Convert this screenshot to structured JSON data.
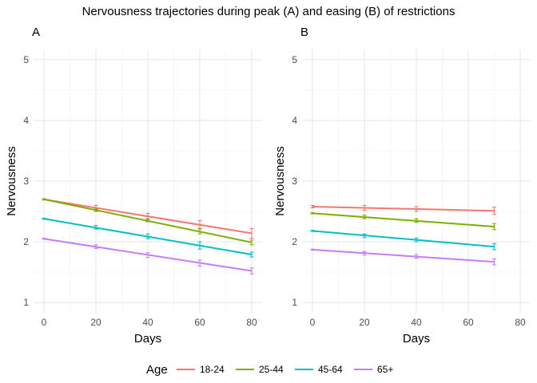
{
  "figure": {
    "title": "Nervousness trajectories during peak (A) and easing (B) of restrictions"
  },
  "legend": {
    "title": "Age",
    "position": "bottom"
  },
  "chart_data": [
    {
      "panel_label": "A",
      "type": "line",
      "xlabel": "Days",
      "ylabel": "Nervousness",
      "xlim": [
        -4,
        84
      ],
      "ylim": [
        0.83,
        5.17
      ],
      "xticks": [
        0,
        20,
        40,
        60,
        80
      ],
      "yticks": [
        1,
        2,
        3,
        4,
        5
      ],
      "grid": true,
      "error_bar_x": [
        0,
        20,
        40,
        60,
        80
      ],
      "series": [
        {
          "name": "18-24",
          "color": "#F8766D",
          "x": [
            0,
            80
          ],
          "y": [
            2.7,
            2.14
          ],
          "errors": [
            {
              "x": 0,
              "y": 2.7,
              "lo": 2.69,
              "hi": 2.71
            },
            {
              "x": 20,
              "y": 2.56,
              "lo": 2.53,
              "hi": 2.6
            },
            {
              "x": 40,
              "y": 2.42,
              "lo": 2.38,
              "hi": 2.47
            },
            {
              "x": 60,
              "y": 2.28,
              "lo": 2.22,
              "hi": 2.35
            },
            {
              "x": 80,
              "y": 2.14,
              "lo": 2.06,
              "hi": 2.22
            }
          ]
        },
        {
          "name": "25-44",
          "color": "#7CAE00",
          "x": [
            0,
            80
          ],
          "y": [
            2.7,
            1.99
          ],
          "errors": [
            {
              "x": 0,
              "y": 2.7,
              "lo": 2.69,
              "hi": 2.71
            },
            {
              "x": 20,
              "y": 2.52,
              "lo": 2.5,
              "hi": 2.54
            },
            {
              "x": 40,
              "y": 2.35,
              "lo": 2.33,
              "hi": 2.37
            },
            {
              "x": 60,
              "y": 2.17,
              "lo": 2.13,
              "hi": 2.21
            },
            {
              "x": 80,
              "y": 1.99,
              "lo": 1.95,
              "hi": 2.03
            }
          ]
        },
        {
          "name": "45-64",
          "color": "#00BFC4",
          "x": [
            0,
            80
          ],
          "y": [
            2.38,
            1.79
          ],
          "errors": [
            {
              "x": 0,
              "y": 2.38,
              "lo": 2.37,
              "hi": 2.39
            },
            {
              "x": 20,
              "y": 2.24,
              "lo": 2.21,
              "hi": 2.27
            },
            {
              "x": 40,
              "y": 2.09,
              "lo": 2.05,
              "hi": 2.13
            },
            {
              "x": 60,
              "y": 1.94,
              "lo": 1.88,
              "hi": 2.0
            },
            {
              "x": 80,
              "y": 1.79,
              "lo": 1.75,
              "hi": 1.83
            }
          ]
        },
        {
          "name": "65+",
          "color": "#C77CFF",
          "x": [
            0,
            80
          ],
          "y": [
            2.05,
            1.52
          ],
          "errors": [
            {
              "x": 0,
              "y": 2.05,
              "lo": 2.04,
              "hi": 2.06
            },
            {
              "x": 20,
              "y": 1.92,
              "lo": 1.89,
              "hi": 1.95
            },
            {
              "x": 40,
              "y": 1.78,
              "lo": 1.74,
              "hi": 1.82
            },
            {
              "x": 60,
              "y": 1.65,
              "lo": 1.6,
              "hi": 1.7
            },
            {
              "x": 80,
              "y": 1.52,
              "lo": 1.47,
              "hi": 1.57
            }
          ]
        }
      ]
    },
    {
      "panel_label": "B",
      "type": "line",
      "xlabel": "Days",
      "ylabel": "Nervousness",
      "xlim": [
        -4,
        84
      ],
      "ylim": [
        0.83,
        5.17
      ],
      "xticks": [
        0,
        20,
        40,
        60,
        80
      ],
      "yticks": [
        1,
        2,
        3,
        4,
        5
      ],
      "grid": true,
      "error_bar_x": [
        0,
        20,
        40,
        70
      ],
      "series": [
        {
          "name": "18-24",
          "color": "#F8766D",
          "x": [
            0,
            70
          ],
          "y": [
            2.58,
            2.51
          ],
          "errors": [
            {
              "x": 0,
              "y": 2.58,
              "lo": 2.56,
              "hi": 2.6
            },
            {
              "x": 20,
              "y": 2.56,
              "lo": 2.52,
              "hi": 2.6
            },
            {
              "x": 40,
              "y": 2.54,
              "lo": 2.5,
              "hi": 2.58
            },
            {
              "x": 70,
              "y": 2.51,
              "lo": 2.45,
              "hi": 2.57
            }
          ]
        },
        {
          "name": "25-44",
          "color": "#7CAE00",
          "x": [
            0,
            70
          ],
          "y": [
            2.47,
            2.25
          ],
          "errors": [
            {
              "x": 0,
              "y": 2.47,
              "lo": 2.46,
              "hi": 2.48
            },
            {
              "x": 20,
              "y": 2.41,
              "lo": 2.38,
              "hi": 2.44
            },
            {
              "x": 40,
              "y": 2.35,
              "lo": 2.32,
              "hi": 2.38
            },
            {
              "x": 70,
              "y": 2.25,
              "lo": 2.2,
              "hi": 2.3
            }
          ]
        },
        {
          "name": "45-64",
          "color": "#00BFC4",
          "x": [
            0,
            70
          ],
          "y": [
            2.18,
            1.92
          ],
          "errors": [
            {
              "x": 0,
              "y": 2.18,
              "lo": 2.17,
              "hi": 2.19
            },
            {
              "x": 20,
              "y": 2.1,
              "lo": 2.07,
              "hi": 2.13
            },
            {
              "x": 40,
              "y": 2.03,
              "lo": 2.0,
              "hi": 2.06
            },
            {
              "x": 70,
              "y": 1.92,
              "lo": 1.87,
              "hi": 1.97
            }
          ]
        },
        {
          "name": "65+",
          "color": "#C77CFF",
          "x": [
            0,
            70
          ],
          "y": [
            1.87,
            1.67
          ],
          "errors": [
            {
              "x": 0,
              "y": 1.87,
              "lo": 1.86,
              "hi": 1.88
            },
            {
              "x": 20,
              "y": 1.81,
              "lo": 1.78,
              "hi": 1.84
            },
            {
              "x": 40,
              "y": 1.76,
              "lo": 1.73,
              "hi": 1.79
            },
            {
              "x": 70,
              "y": 1.67,
              "lo": 1.62,
              "hi": 1.72
            }
          ]
        }
      ]
    }
  ]
}
